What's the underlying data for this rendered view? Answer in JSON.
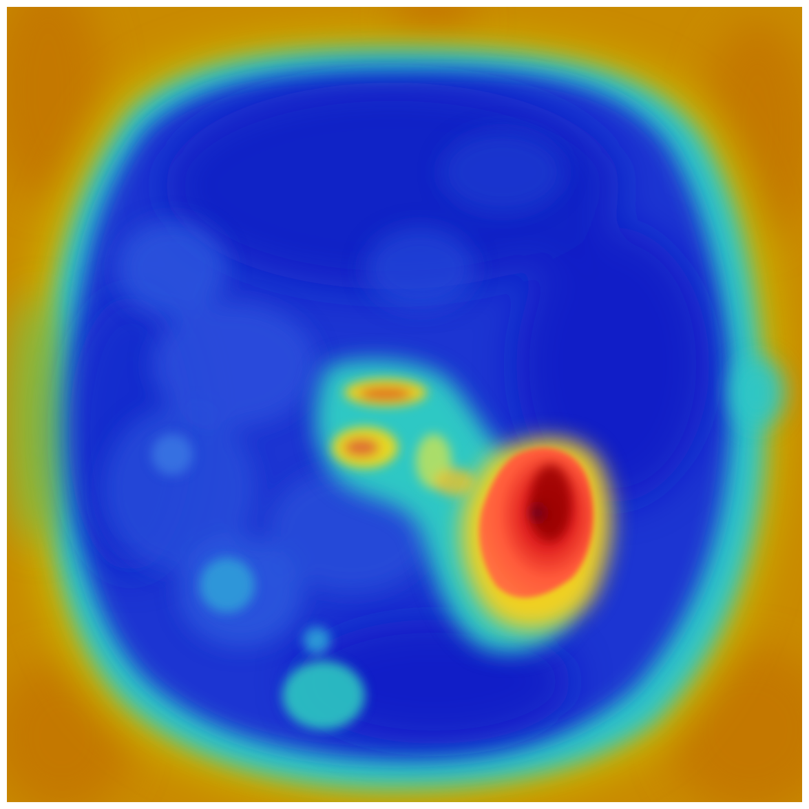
{
  "image": {
    "kind": "brain-scan-heatmap-overlay",
    "colormap": "jet",
    "palette": {
      "background": "#c98a00",
      "outer_ring": "#c3b400",
      "rim": "#36c7c0",
      "tissue": "#1830d4",
      "tissue_deep": "#0b1bc9",
      "hot": "#ff4030",
      "hot_core": "#b00000",
      "warm": "#f0e030"
    }
  }
}
